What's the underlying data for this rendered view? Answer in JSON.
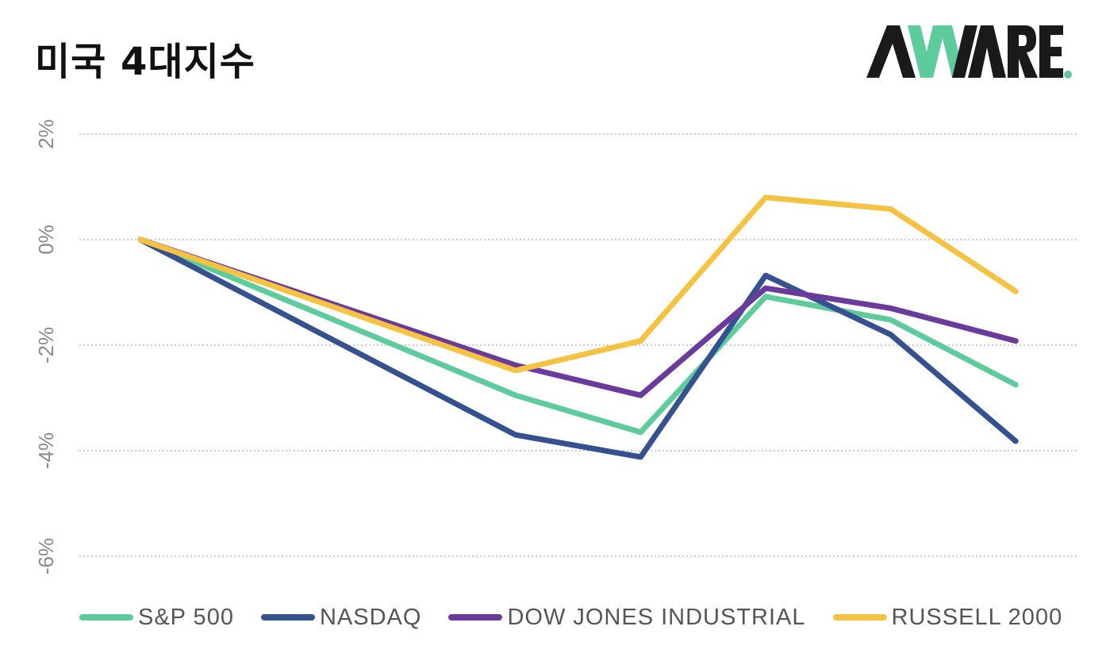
{
  "title": "미국 4대지수",
  "logo": {
    "text": "AWARE",
    "dot_color": "#5ecb9d",
    "accent_color": "#5ecb9d"
  },
  "chart_data": {
    "type": "line",
    "title": "미국 4대지수",
    "x": [
      0,
      1,
      2,
      3,
      4,
      5,
      6,
      7
    ],
    "ylim": [
      -6,
      2
    ],
    "yticks": [
      2,
      0,
      -2,
      -4,
      -6
    ],
    "ytick_labels": [
      "2%",
      "0%",
      "-2%",
      "-4%",
      "-6%"
    ],
    "grid": true,
    "legend_position": "bottom",
    "series": [
      {
        "name": "S&P 500",
        "color": "#5ecb9d",
        "values": [
          0,
          null,
          null,
          -2.95,
          -3.65,
          -1.08,
          -1.52,
          -2.75
        ]
      },
      {
        "name": "NASDAQ",
        "color": "#35518f",
        "values": [
          0,
          null,
          null,
          -3.7,
          -4.12,
          -0.68,
          -1.8,
          -3.82
        ]
      },
      {
        "name": "DOW JONES INDUSTRIAL",
        "color": "#6a3a9c",
        "values": [
          0,
          null,
          null,
          -2.38,
          -2.95,
          -0.92,
          -1.3,
          -1.92
        ]
      },
      {
        "name": "RUSSELL 2000",
        "color": "#f5c242",
        "values": [
          0,
          null,
          null,
          -2.48,
          -1.92,
          0.8,
          0.58,
          -0.98
        ]
      }
    ]
  }
}
